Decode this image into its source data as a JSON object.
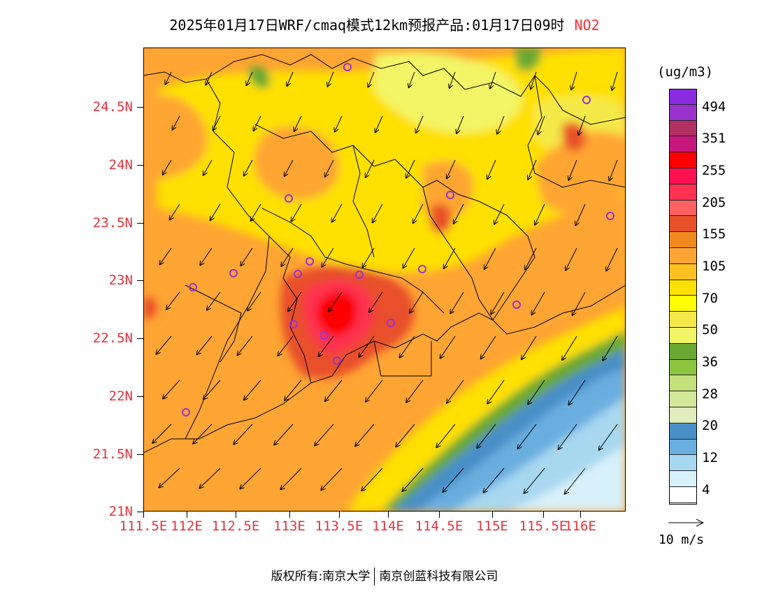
{
  "title": {
    "main": "2025年01月17日WRF/cmaq模式12km预报产品:01月17日09时",
    "species": "NO2"
  },
  "axes": {
    "y_ticks": [
      "24.5N",
      "24N",
      "23.5N",
      "23N",
      "22.5N",
      "22N",
      "21.5N",
      "21N"
    ],
    "x_ticks": [
      "111.5E",
      "112E",
      "112.5E",
      "113E",
      "113.5E",
      "114E",
      "114.5E",
      "115E",
      "115.5E",
      "116E"
    ]
  },
  "legend": {
    "units": "(ug/m3)",
    "labels": [
      "494",
      "351",
      "255",
      "205",
      "155",
      "105",
      "70",
      "50",
      "36",
      "28",
      "20",
      "12",
      "4"
    ],
    "colors": [
      "#8a2be2",
      "#9932cc",
      "#b03060",
      "#c8177e",
      "#ff0000",
      "#ff1050",
      "#ff3050",
      "#ff6060",
      "#e8502a",
      "#f08a1e",
      "#ffa533",
      "#ffc020",
      "#ffe000",
      "#ffff00",
      "#f5e94a",
      "#f2f566",
      "#6aa832",
      "#8cc63f",
      "#c3e07a",
      "#d4e89a",
      "#e0ecbc",
      "#4a8fc8",
      "#6aaee0",
      "#a8d8f0",
      "#d8f0fa",
      "#ffffff"
    ]
  },
  "wind_reference": {
    "label": "10 m/s"
  },
  "footer": {
    "copyright": "版权所有:南京大学",
    "company": "南京创蓝科技有限公司"
  },
  "colors": {
    "tick_label": "#e8323c",
    "species_label": "#ff2b2b"
  }
}
